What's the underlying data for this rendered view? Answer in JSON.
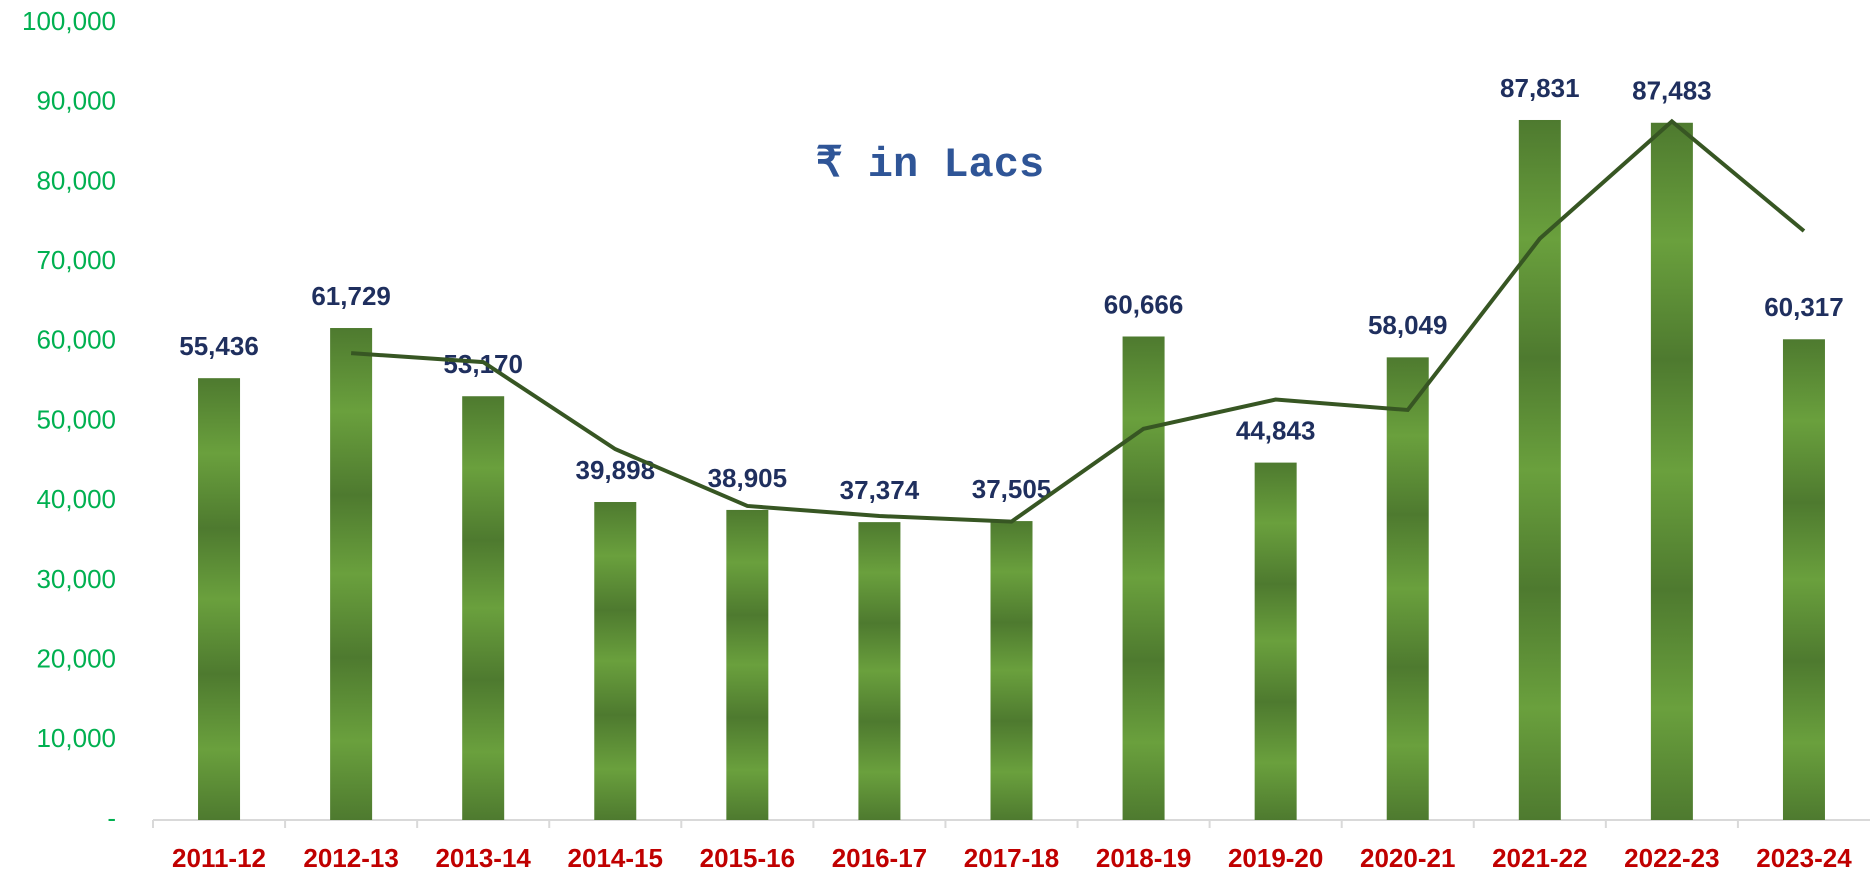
{
  "chart_data": {
    "type": "bar",
    "title": "₹ in Lacs",
    "categories": [
      "2011-12",
      "2012-13",
      "2013-14",
      "2014-15",
      "2015-16",
      "2016-17",
      "2017-18",
      "2018-19",
      "2019-20",
      "2020-21",
      "2021-22",
      "2022-23",
      "2023-24"
    ],
    "series": [
      {
        "type": "bar",
        "color": "#548235",
        "values": [
          55436,
          61729,
          53170,
          39898,
          38905,
          37374,
          37505,
          60666,
          44843,
          58049,
          87831,
          87483,
          60317
        ],
        "value_labels": [
          "55,436",
          "61,729",
          "53,170",
          "39,898",
          "38,905",
          "37,374",
          "37,505",
          "60,666",
          "44,843",
          "58,049",
          "87,831",
          "87,483",
          "60,317"
        ]
      },
      {
        "type": "line",
        "color": "#375623",
        "values": [
          null,
          58583,
          57450,
          46534,
          39402,
          38140,
          37440,
          49086,
          52755,
          51446,
          72940,
          87657,
          73900
        ]
      }
    ],
    "ylim": [
      0,
      100000
    ],
    "yticks": [
      {
        "value": 0,
        "label": "-"
      },
      {
        "value": 10000,
        "label": "10,000"
      },
      {
        "value": 20000,
        "label": "20,000"
      },
      {
        "value": 30000,
        "label": "30,000"
      },
      {
        "value": 40000,
        "label": "40,000"
      },
      {
        "value": 50000,
        "label": "50,000"
      },
      {
        "value": 60000,
        "label": "60,000"
      },
      {
        "value": 70000,
        "label": "70,000"
      },
      {
        "value": 80000,
        "label": "80,000"
      },
      {
        "value": 90000,
        "label": "90,000"
      },
      {
        "value": 100000,
        "label": "100,000"
      }
    ]
  }
}
